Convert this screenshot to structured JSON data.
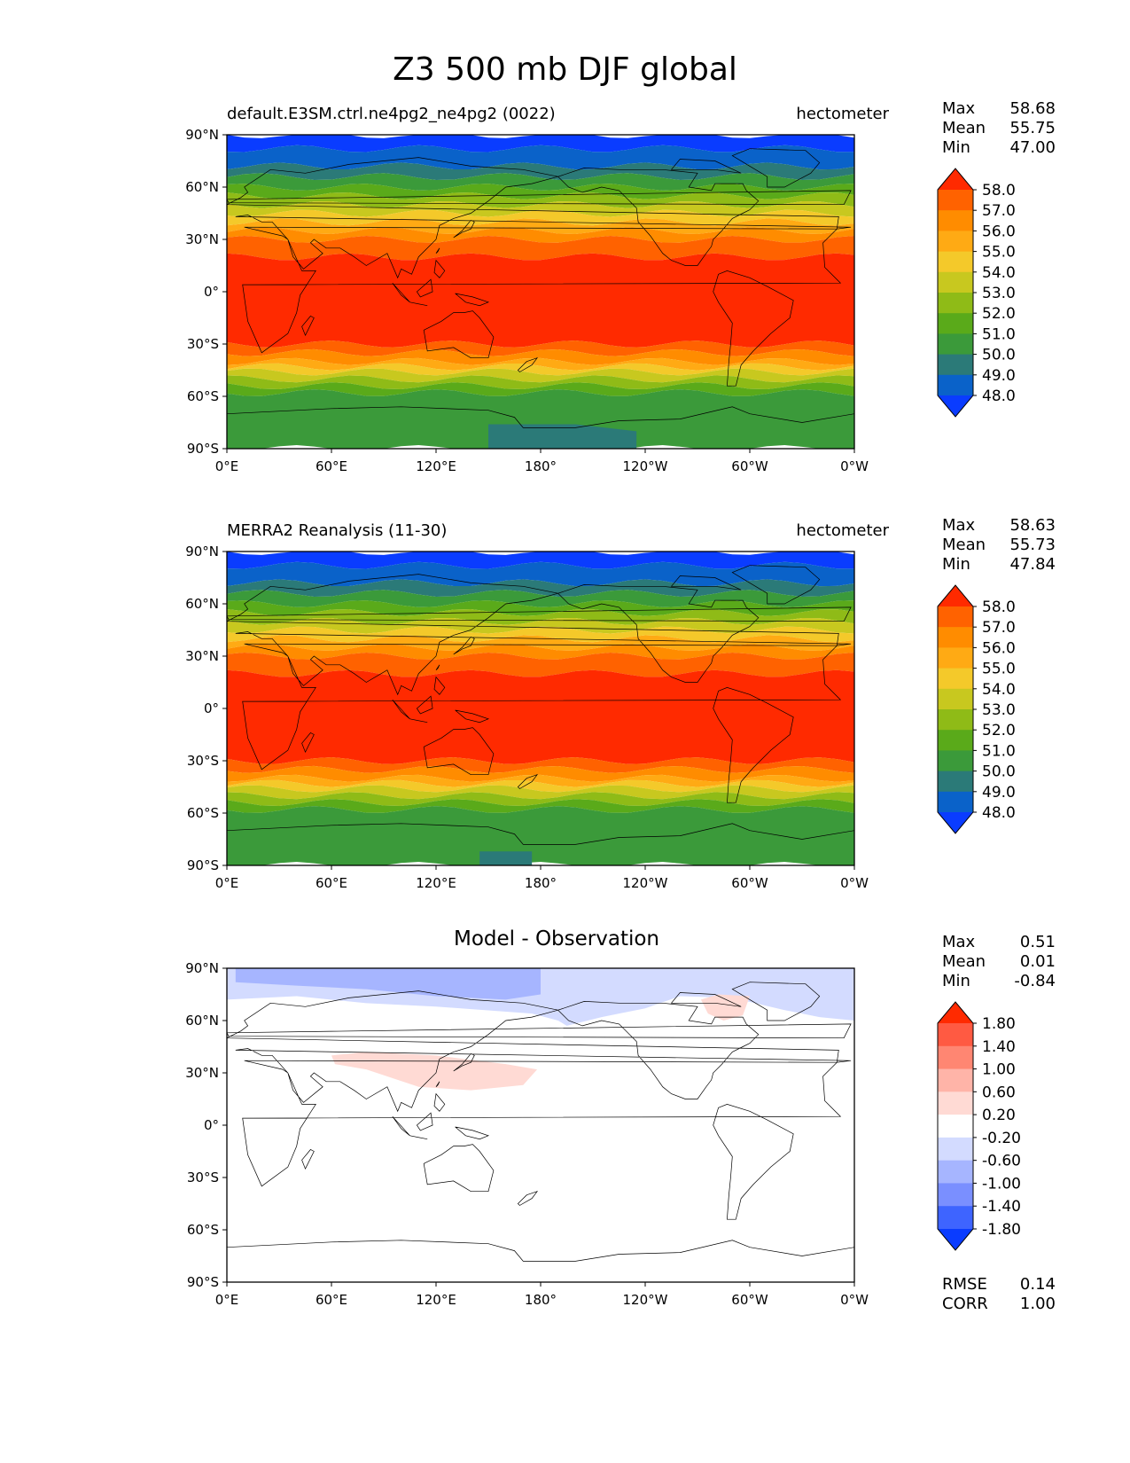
{
  "title": "Z3 500 mb DJF global",
  "x_ticks": [
    "0°E",
    "60°E",
    "120°E",
    "180°",
    "120°W",
    "60°W",
    "0°W"
  ],
  "y_ticks": [
    "90°N",
    "60°N",
    "30°N",
    "0°",
    "30°S",
    "60°S",
    "90°S"
  ],
  "panels": [
    {
      "title_left": "default.E3SM.ctrl.ne4pg2_ne4pg2 (0022)",
      "title_right": "hectometer",
      "stats": {
        "max_label": "Max",
        "max": "58.68",
        "mean_label": "Mean",
        "mean": "55.75",
        "min_label": "Min",
        "min": "47.00"
      },
      "colorbar": {
        "levels": [
          "58.0",
          "57.0",
          "56.0",
          "55.0",
          "54.0",
          "53.0",
          "52.0",
          "51.0",
          "50.0",
          "49.0",
          "48.0"
        ],
        "colors": [
          "#ff2a00",
          "#ff6200",
          "#ff8c00",
          "#ffaa14",
          "#f4c92a",
          "#c8c81f",
          "#8fbb17",
          "#5aaa1a",
          "#3b9a3a",
          "#2b7a78",
          "#0a62c9",
          "#0a3cff"
        ]
      }
    },
    {
      "title_left": "MERRA2 Reanalysis (11-30)",
      "title_right": "hectometer",
      "stats": {
        "max_label": "Max",
        "max": "58.63",
        "mean_label": "Mean",
        "mean": "55.73",
        "min_label": "Min",
        "min": "47.84"
      },
      "colorbar": {
        "levels": [
          "58.0",
          "57.0",
          "56.0",
          "55.0",
          "54.0",
          "53.0",
          "52.0",
          "51.0",
          "50.0",
          "49.0",
          "48.0"
        ],
        "colors": [
          "#ff2a00",
          "#ff6200",
          "#ff8c00",
          "#ffaa14",
          "#f4c92a",
          "#c8c81f",
          "#8fbb17",
          "#5aaa1a",
          "#3b9a3a",
          "#2b7a78",
          "#0a62c9",
          "#0a3cff"
        ]
      }
    },
    {
      "title_center": "Model - Observation",
      "stats": {
        "max_label": "Max",
        "max": "0.51",
        "mean_label": "Mean",
        "mean": "0.01",
        "min_label": "Min",
        "min": "-0.84"
      },
      "colorbar": {
        "levels": [
          "1.80",
          "1.40",
          "1.00",
          "0.60",
          "0.20",
          "-0.20",
          "-0.60",
          "-1.00",
          "-1.40",
          "-1.80"
        ],
        "colors": [
          "#ff2a00",
          "#ff5a42",
          "#ff8672",
          "#ffb4a8",
          "#ffdad4",
          "#ffffff",
          "#d3dbff",
          "#a6b5ff",
          "#7a8fff",
          "#3e64ff",
          "#0a3cff"
        ]
      },
      "bottom_stats": {
        "rmse_label": "RMSE",
        "rmse": "0.14",
        "corr_label": "CORR",
        "corr": "1.00"
      }
    }
  ]
}
